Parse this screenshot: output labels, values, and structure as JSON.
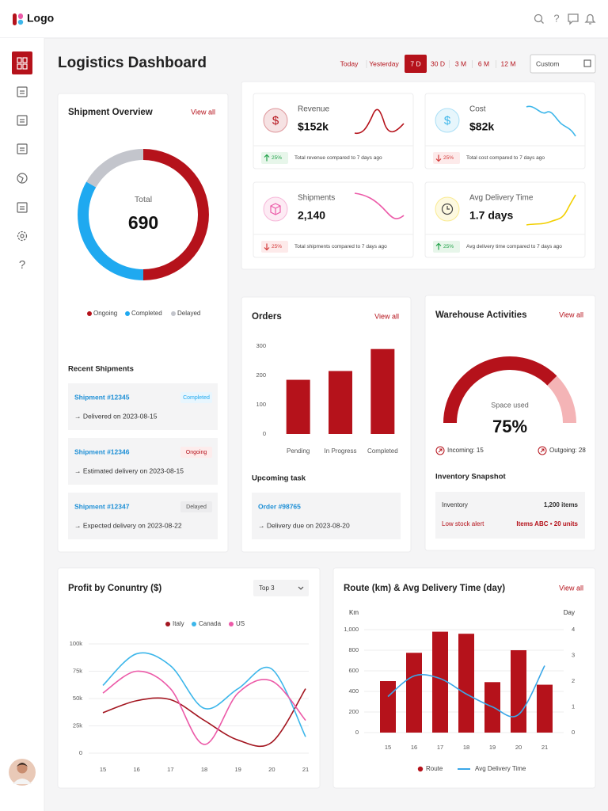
{
  "header": {
    "logo": "Logo",
    "help": "?"
  },
  "sidebar": {
    "help": "?"
  },
  "page": {
    "title": "Logistics Dashboard",
    "ranges": [
      "Today",
      "Yesterday",
      "7 D",
      "30 D",
      "3 M",
      "6 M",
      "12 M"
    ],
    "active_range": 2,
    "date_select": "Custom"
  },
  "kpis": [
    {
      "label": "Revenue",
      "value": "$152k",
      "icon": "$",
      "color": "#b5121b",
      "trend": "up",
      "change": "25%",
      "note": "Total revenue compared to 7 days ago"
    },
    {
      "label": "Cost",
      "value": "$82k",
      "icon": "$",
      "color": "#3cb6ea",
      "trend": "down",
      "change": "25%",
      "note": "Total cost compared to 7 days ago"
    },
    {
      "label": "Shipments",
      "value": "2,140",
      "color": "#ec5aa8",
      "trend": "down",
      "change": "25%",
      "note": "Total shipments compared to 7 days ago"
    },
    {
      "label": "Avg Delivery Time",
      "value": "1.7 days",
      "color": "#f2cf00",
      "trend": "up",
      "change": "25%",
      "note": "Avg delivery time compared to 7 days ago"
    }
  ],
  "shipments": {
    "title": "Recent Shipments",
    "items": [
      {
        "id": "Shipment #12345",
        "status": "Completed",
        "detail": "→ Delivered on 2023-08-15"
      },
      {
        "id": "Shipment #12346",
        "status": "Ongoing",
        "detail": "→ Estimated delivery on 2023-08-15"
      },
      {
        "id": "Shipment #12347",
        "status": "Delayed",
        "detail": "→ Expected delivery on 2023-08-22"
      }
    ]
  },
  "tasks": {
    "title": "Upcoming task",
    "items": [
      {
        "id": "Order #98765",
        "detail": "→ Delivery due on 2023-08-20"
      }
    ]
  },
  "inventory": {
    "title": "Inventory Snapshot",
    "rows": [
      [
        "Inventory",
        "1,200 items"
      ],
      [
        "Low stock alert",
        "Items ABC • 20 units"
      ]
    ]
  },
  "chart_data": [
    {
      "type": "donut",
      "title": "Shipment Overview",
      "action": "View all",
      "center_label": "Total",
      "total": 690,
      "categories": [
        "Ongoing",
        "Completed",
        "Delayed"
      ],
      "values": [
        345,
        230,
        115
      ],
      "colors": [
        "#b5121b",
        "#1fa9f0",
        "#c3c5cc"
      ],
      "legend": "bottom"
    },
    {
      "type": "bar",
      "title": "Orders",
      "action": "View all",
      "categories": [
        "Pending",
        "In Progress",
        "Completed"
      ],
      "values": [
        185,
        215,
        290
      ],
      "color": "#b5121b",
      "ylim": [
        0,
        300
      ],
      "yticks": [
        0,
        100,
        200,
        300
      ],
      "grid": false
    },
    {
      "type": "gauge",
      "title": "Warehouse Activities",
      "action": "View all",
      "label": "Space used",
      "value": 75,
      "value_label": "75%",
      "ylim": [
        0,
        100
      ],
      "colors": [
        "#b5121b",
        "#f4b4b6"
      ],
      "incoming": "Incoming: 15",
      "outgoing": "Outgoing: 28"
    },
    {
      "type": "line",
      "title": "Profit by Conuntry ($)",
      "filter": "Top 3",
      "categories": [
        "15",
        "16",
        "17",
        "18",
        "19",
        "20",
        "21"
      ],
      "series": [
        {
          "name": "Italy",
          "color": "#a31620",
          "values": [
            37000,
            48000,
            49000,
            30000,
            12000,
            10000,
            59000
          ]
        },
        {
          "name": "Canada",
          "color": "#3cb6ea",
          "values": [
            62000,
            91000,
            80000,
            41000,
            59000,
            77000,
            15000
          ]
        },
        {
          "name": "US",
          "color": "#ec5aa8",
          "values": [
            55000,
            75000,
            59000,
            8000,
            55000,
            66000,
            30000
          ]
        }
      ],
      "ylim": [
        0,
        100000
      ],
      "yticks": [
        0,
        {
          "value": 25000,
          "label": "25k"
        },
        {
          "value": 50000,
          "label": "50k"
        },
        {
          "value": 75000,
          "label": "75k"
        },
        {
          "value": 100000,
          "label": "100k"
        }
      ],
      "grid": true,
      "legend": "top"
    },
    {
      "type": "bar-line",
      "title": "Route (km) & Avg Delivery Time (day)",
      "action": "View all",
      "y_label": "Km",
      "y2_label": "Day",
      "categories": [
        "15",
        "16",
        "17",
        "18",
        "19",
        "20",
        "21"
      ],
      "series": [
        {
          "name": "Route",
          "type": "bar",
          "color": "#b5121b",
          "values": [
            500,
            775,
            980,
            960,
            490,
            800,
            465
          ]
        },
        {
          "name": "Avg Delivery Time",
          "type": "line",
          "axis": "y2",
          "color": "#3aa7e8",
          "values": [
            1.4,
            2.2,
            2.1,
            1.5,
            1.0,
            0.7,
            2.6
          ]
        }
      ],
      "ylim": [
        0,
        1000
      ],
      "yticks": [
        0,
        200,
        400,
        600,
        800,
        {
          "value": 1000,
          "label": "1,000"
        }
      ],
      "y2lim": [
        0,
        4
      ],
      "y2ticks": [
        0,
        1,
        2,
        3,
        4
      ],
      "grid": true,
      "legend": "bottom"
    }
  ]
}
